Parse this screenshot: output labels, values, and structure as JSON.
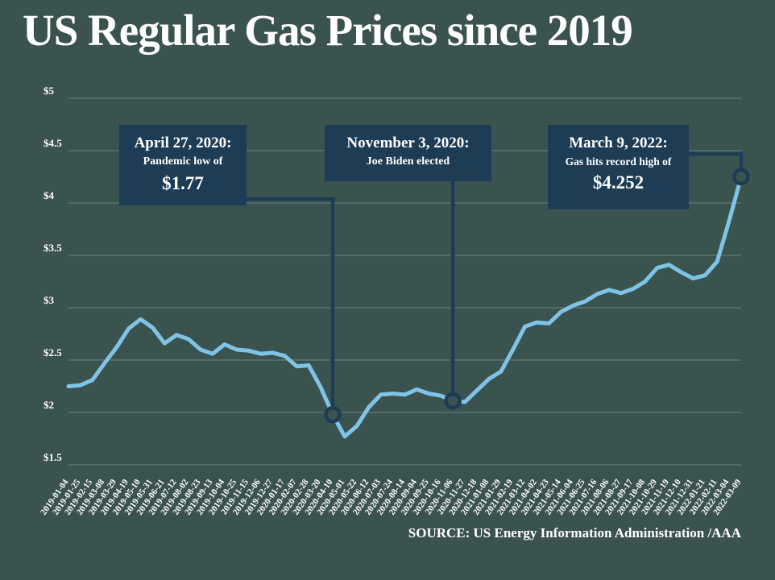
{
  "title": "US Regular Gas Prices since 2019",
  "source": "SOURCE: US Energy Information Administration /AAA",
  "colors": {
    "background": "#3b534f",
    "line": "#7fc3e6",
    "box": "#1d3c55",
    "grid": "#68837d",
    "text": "#ffffff"
  },
  "callouts": [
    {
      "heading": "April 27, 2020:",
      "subtext": "Pandemic low of",
      "big_value": "$1.77",
      "anchor_date": "2020-04-10"
    },
    {
      "heading": "November 3, 2020:",
      "subtext": "Joe Biden elected",
      "big_value": "",
      "anchor_date": "2020-11-06"
    },
    {
      "heading": "March 9, 2022:",
      "subtext": "Gas hits record high of",
      "big_value": "$4.252",
      "anchor_date": "2022-03-09"
    }
  ],
  "chart_data": {
    "type": "line",
    "title": "US Regular Gas Prices since 2019",
    "xlabel": "",
    "ylabel": "",
    "ylim": [
      1.5,
      5
    ],
    "grid": "horizontal",
    "legend": "none",
    "yticks": [
      {
        "label": "$5",
        "value": 5
      },
      {
        "label": "$4.5",
        "value": 4.5
      },
      {
        "label": "$4",
        "value": 4
      },
      {
        "label": "$3.5",
        "value": 3.5
      },
      {
        "label": "$3",
        "value": 3
      },
      {
        "label": "$2.5",
        "value": 2.5
      },
      {
        "label": "$2",
        "value": 2
      },
      {
        "label": "$1.5",
        "value": 1.5
      }
    ],
    "x": [
      "2019-01-04",
      "2019-01-25",
      "2019-02-15",
      "2019-03-08",
      "2019-03-29",
      "2019-04-19",
      "2019-05-10",
      "2019-05-31",
      "2019-06-21",
      "2019-07-12",
      "2019-08-02",
      "2019-08-23",
      "2019-09-13",
      "2019-10-04",
      "2019-10-25",
      "2019-11-15",
      "2019-12-06",
      "2019-12-27",
      "2020-01-17",
      "2020-02-07",
      "2020-02-28",
      "2020-03-20",
      "2020-04-10",
      "2020-05-01",
      "2020-05-22",
      "2020-06-12",
      "2020-07-03",
      "2020-07-24",
      "2020-08-14",
      "2020-09-04",
      "2020-09-25",
      "2020-10-16",
      "2020-11-06",
      "2020-11-27",
      "2020-12-18",
      "2021-01-08",
      "2021-01-29",
      "2021-02-19",
      "2021-03-12",
      "2021-04-02",
      "2021-04-23",
      "2021-05-14",
      "2021-06-04",
      "2021-06-25",
      "2021-07-16",
      "2021-08-06",
      "2021-08-27",
      "2021-09-17",
      "2021-10-08",
      "2021-10-29",
      "2021-11-19",
      "2021-12-10",
      "2021-12-31",
      "2022-01-21",
      "2022-02-11",
      "2022-03-04",
      "2022-03-09"
    ],
    "values": [
      2.25,
      2.26,
      2.31,
      2.47,
      2.62,
      2.8,
      2.89,
      2.81,
      2.66,
      2.74,
      2.7,
      2.6,
      2.56,
      2.65,
      2.6,
      2.59,
      2.56,
      2.57,
      2.54,
      2.44,
      2.45,
      2.24,
      1.98,
      1.77,
      1.87,
      2.05,
      2.17,
      2.18,
      2.17,
      2.22,
      2.18,
      2.16,
      2.11,
      2.1,
      2.21,
      2.32,
      2.39,
      2.6,
      2.82,
      2.86,
      2.85,
      2.96,
      3.02,
      3.06,
      3.13,
      3.17,
      3.14,
      3.18,
      3.25,
      3.38,
      3.41,
      3.34,
      3.28,
      3.31,
      3.44,
      3.83,
      4.25
    ]
  }
}
